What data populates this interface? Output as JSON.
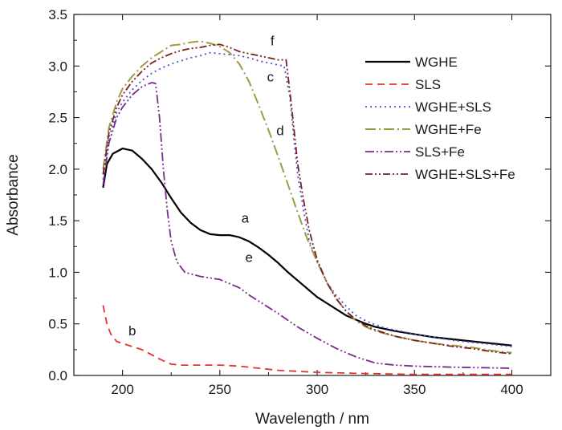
{
  "chart_data": {
    "type": "line",
    "title": "",
    "xlabel": "Wavelength / nm",
    "ylabel": "Absorbance",
    "xlim": [
      175,
      420
    ],
    "ylim": [
      0,
      3.5
    ],
    "xticks": [
      200,
      250,
      300,
      350,
      400
    ],
    "yticks": [
      0.0,
      0.5,
      1.0,
      1.5,
      2.0,
      2.5,
      3.0,
      3.5
    ],
    "xtick_labels": [
      "200",
      "250",
      "300",
      "350",
      "400"
    ],
    "ytick_labels": [
      "0.0",
      "0.5",
      "1.0",
      "1.5",
      "2.0",
      "2.5",
      "3.0",
      "3.5"
    ],
    "grid": false,
    "legend_position": "top-right",
    "series": [
      {
        "name": "WGHE",
        "label": "a",
        "label_at": [
          263,
          1.48
        ],
        "color": "#000000",
        "dash": "",
        "width": 2.2,
        "points": [
          [
            190,
            1.82
          ],
          [
            192,
            2.05
          ],
          [
            195,
            2.15
          ],
          [
            200,
            2.2
          ],
          [
            205,
            2.18
          ],
          [
            210,
            2.1
          ],
          [
            215,
            2.0
          ],
          [
            220,
            1.87
          ],
          [
            225,
            1.72
          ],
          [
            230,
            1.58
          ],
          [
            235,
            1.48
          ],
          [
            240,
            1.41
          ],
          [
            245,
            1.37
          ],
          [
            250,
            1.36
          ],
          [
            255,
            1.36
          ],
          [
            260,
            1.34
          ],
          [
            265,
            1.3
          ],
          [
            270,
            1.24
          ],
          [
            275,
            1.17
          ],
          [
            280,
            1.09
          ],
          [
            285,
            1.0
          ],
          [
            290,
            0.92
          ],
          [
            295,
            0.84
          ],
          [
            300,
            0.76
          ],
          [
            305,
            0.7
          ],
          [
            310,
            0.64
          ],
          [
            315,
            0.58
          ],
          [
            320,
            0.54
          ],
          [
            325,
            0.5
          ],
          [
            330,
            0.47
          ],
          [
            335,
            0.45
          ],
          [
            340,
            0.43
          ],
          [
            350,
            0.4
          ],
          [
            360,
            0.37
          ],
          [
            370,
            0.35
          ],
          [
            380,
            0.33
          ],
          [
            390,
            0.31
          ],
          [
            400,
            0.29
          ]
        ]
      },
      {
        "name": "SLS",
        "label": "b",
        "label_at": [
          205,
          0.39
        ],
        "color": "#e5332a",
        "dash": "9,6",
        "width": 1.8,
        "points": [
          [
            190,
            0.68
          ],
          [
            192,
            0.5
          ],
          [
            194,
            0.4
          ],
          [
            197,
            0.33
          ],
          [
            200,
            0.31
          ],
          [
            205,
            0.28
          ],
          [
            210,
            0.25
          ],
          [
            215,
            0.2
          ],
          [
            220,
            0.15
          ],
          [
            225,
            0.11
          ],
          [
            230,
            0.1
          ],
          [
            240,
            0.1
          ],
          [
            250,
            0.1
          ],
          [
            260,
            0.09
          ],
          [
            270,
            0.07
          ],
          [
            280,
            0.05
          ],
          [
            290,
            0.04
          ],
          [
            300,
            0.03
          ],
          [
            320,
            0.02
          ],
          [
            350,
            0.01
          ],
          [
            400,
            0.01
          ]
        ]
      },
      {
        "name": "WGHE+SLS",
        "label": "c",
        "label_at": [
          276,
          2.85
        ],
        "color": "#4e4fd0",
        "dash": "2,4",
        "width": 1.8,
        "points": [
          [
            190,
            1.9
          ],
          [
            193,
            2.3
          ],
          [
            197,
            2.55
          ],
          [
            200,
            2.65
          ],
          [
            205,
            2.77
          ],
          [
            210,
            2.86
          ],
          [
            215,
            2.93
          ],
          [
            220,
            2.98
          ],
          [
            225,
            3.02
          ],
          [
            230,
            3.05
          ],
          [
            235,
            3.08
          ],
          [
            240,
            3.1
          ],
          [
            245,
            3.13
          ],
          [
            250,
            3.12
          ],
          [
            255,
            3.11
          ],
          [
            260,
            3.1
          ],
          [
            265,
            3.08
          ],
          [
            270,
            3.05
          ],
          [
            275,
            3.03
          ],
          [
            280,
            3.01
          ],
          [
            283,
            3.0
          ],
          [
            286,
            2.7
          ],
          [
            288,
            2.3
          ],
          [
            290,
            1.95
          ],
          [
            293,
            1.6
          ],
          [
            296,
            1.3
          ],
          [
            300,
            1.1
          ],
          [
            305,
            0.9
          ],
          [
            310,
            0.77
          ],
          [
            315,
            0.67
          ],
          [
            320,
            0.58
          ],
          [
            325,
            0.53
          ],
          [
            330,
            0.49
          ],
          [
            335,
            0.46
          ],
          [
            340,
            0.44
          ],
          [
            350,
            0.4
          ],
          [
            360,
            0.37
          ],
          [
            370,
            0.34
          ],
          [
            380,
            0.32
          ],
          [
            390,
            0.3
          ],
          [
            400,
            0.28
          ]
        ]
      },
      {
        "name": "WGHE+Fe",
        "label": "d",
        "label_at": [
          281,
          2.33
        ],
        "color": "#9e9a44",
        "dash": "13,4,2,4",
        "width": 2.0,
        "points": [
          [
            190,
            2.0
          ],
          [
            193,
            2.4
          ],
          [
            197,
            2.65
          ],
          [
            200,
            2.78
          ],
          [
            205,
            2.9
          ],
          [
            210,
            3.0
          ],
          [
            215,
            3.08
          ],
          [
            220,
            3.14
          ],
          [
            225,
            3.2
          ],
          [
            230,
            3.21
          ],
          [
            235,
            3.23
          ],
          [
            240,
            3.24
          ],
          [
            245,
            3.22
          ],
          [
            250,
            3.19
          ],
          [
            255,
            3.13
          ],
          [
            260,
            3.02
          ],
          [
            265,
            2.85
          ],
          [
            270,
            2.62
          ],
          [
            275,
            2.38
          ],
          [
            280,
            2.12
          ],
          [
            285,
            1.85
          ],
          [
            290,
            1.58
          ],
          [
            295,
            1.32
          ],
          [
            300,
            1.1
          ],
          [
            305,
            0.9
          ],
          [
            310,
            0.74
          ],
          [
            315,
            0.62
          ],
          [
            320,
            0.53
          ],
          [
            325,
            0.47
          ],
          [
            330,
            0.43
          ],
          [
            340,
            0.38
          ],
          [
            350,
            0.34
          ],
          [
            360,
            0.31
          ],
          [
            370,
            0.29
          ],
          [
            380,
            0.27
          ],
          [
            390,
            0.24
          ],
          [
            400,
            0.22
          ]
        ]
      },
      {
        "name": "SLS+Fe",
        "label": "e",
        "label_at": [
          265,
          1.1
        ],
        "color": "#7a2a8e",
        "dash": "11,3,2,3,2,3",
        "width": 1.8,
        "points": [
          [
            190,
            1.85
          ],
          [
            193,
            2.25
          ],
          [
            197,
            2.5
          ],
          [
            200,
            2.6
          ],
          [
            205,
            2.72
          ],
          [
            210,
            2.8
          ],
          [
            215,
            2.84
          ],
          [
            217,
            2.83
          ],
          [
            219,
            2.5
          ],
          [
            221,
            2.0
          ],
          [
            223,
            1.6
          ],
          [
            225,
            1.3
          ],
          [
            228,
            1.1
          ],
          [
            232,
            1.0
          ],
          [
            236,
            0.98
          ],
          [
            240,
            0.96
          ],
          [
            250,
            0.93
          ],
          [
            255,
            0.89
          ],
          [
            260,
            0.85
          ],
          [
            265,
            0.78
          ],
          [
            270,
            0.72
          ],
          [
            280,
            0.6
          ],
          [
            290,
            0.47
          ],
          [
            300,
            0.36
          ],
          [
            310,
            0.26
          ],
          [
            320,
            0.18
          ],
          [
            330,
            0.12
          ],
          [
            340,
            0.1
          ],
          [
            350,
            0.09
          ],
          [
            370,
            0.08
          ],
          [
            400,
            0.07
          ]
        ]
      },
      {
        "name": "WGHE+SLS+Fe",
        "label": "f",
        "label_at": [
          277,
          3.2
        ],
        "color": "#7a1f1f",
        "dash": "9,3,2,3,2,3",
        "width": 1.8,
        "points": [
          [
            190,
            1.95
          ],
          [
            193,
            2.35
          ],
          [
            197,
            2.6
          ],
          [
            200,
            2.72
          ],
          [
            205,
            2.85
          ],
          [
            210,
            2.95
          ],
          [
            215,
            3.03
          ],
          [
            220,
            3.08
          ],
          [
            225,
            3.12
          ],
          [
            230,
            3.15
          ],
          [
            235,
            3.17
          ],
          [
            240,
            3.18
          ],
          [
            245,
            3.2
          ],
          [
            250,
            3.21
          ],
          [
            255,
            3.18
          ],
          [
            260,
            3.14
          ],
          [
            265,
            3.12
          ],
          [
            270,
            3.1
          ],
          [
            275,
            3.08
          ],
          [
            280,
            3.06
          ],
          [
            284,
            3.06
          ],
          [
            286,
            2.75
          ],
          [
            288,
            2.4
          ],
          [
            290,
            2.05
          ],
          [
            293,
            1.7
          ],
          [
            296,
            1.4
          ],
          [
            300,
            1.12
          ],
          [
            305,
            0.9
          ],
          [
            310,
            0.74
          ],
          [
            315,
            0.62
          ],
          [
            320,
            0.54
          ],
          [
            325,
            0.48
          ],
          [
            330,
            0.44
          ],
          [
            340,
            0.38
          ],
          [
            350,
            0.34
          ],
          [
            360,
            0.31
          ],
          [
            370,
            0.28
          ],
          [
            380,
            0.26
          ],
          [
            390,
            0.23
          ],
          [
            400,
            0.21
          ]
        ]
      }
    ]
  }
}
